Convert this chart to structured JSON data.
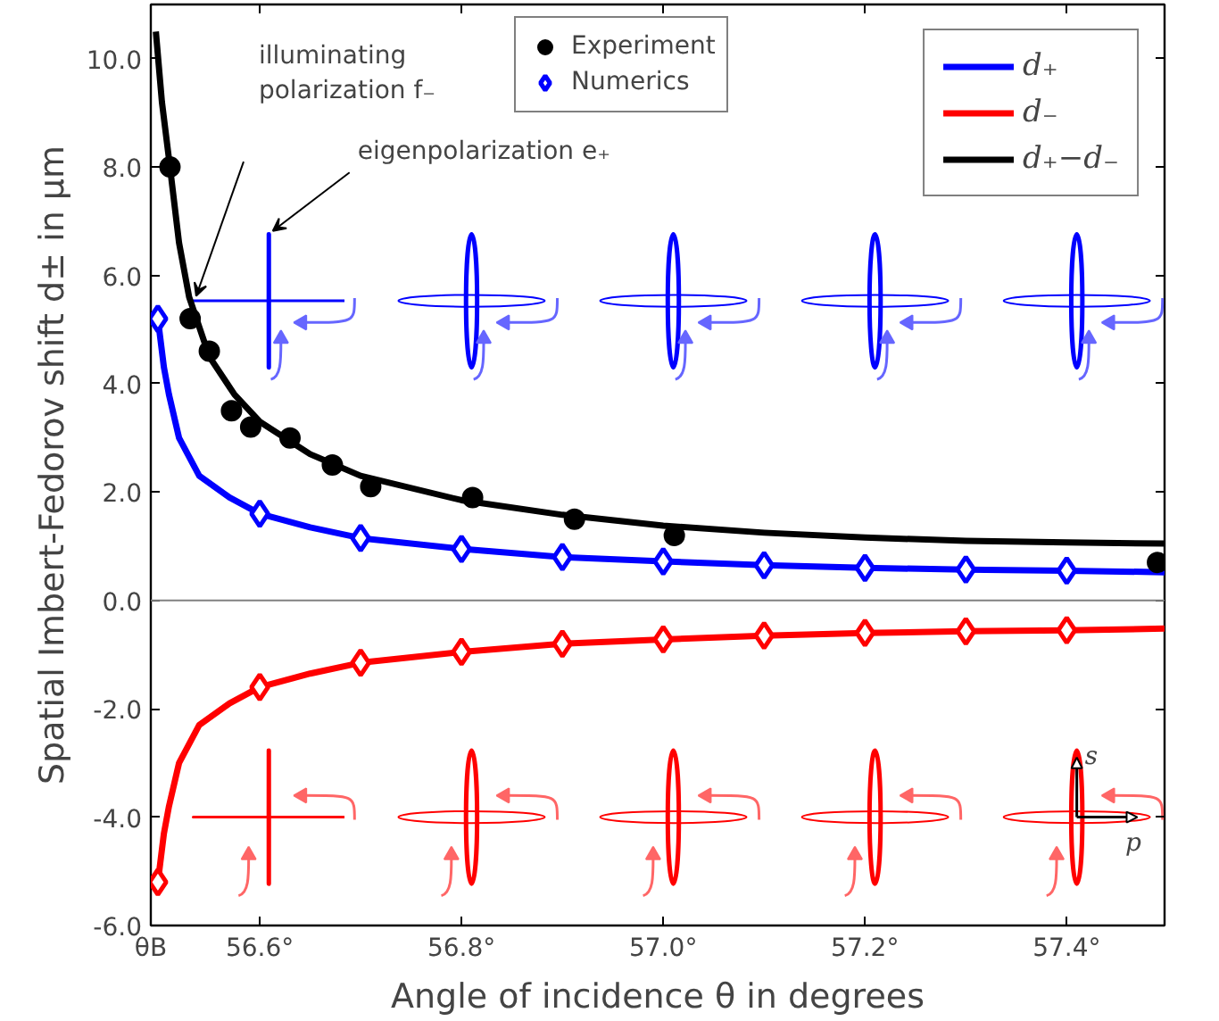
{
  "chart_data": {
    "type": "line",
    "xlabel": "Angle of incidence θ in degrees",
    "ylabel": "Spatial Imbert-Fedorov shift d± in μm",
    "xlim": [
      56.492,
      57.497
    ],
    "ylim": [
      -6.0,
      11.0
    ],
    "xticks": [
      {
        "value": 56.492,
        "label": "θB"
      },
      {
        "value": 56.6,
        "label": "56.6°"
      },
      {
        "value": 56.8,
        "label": "56.8°"
      },
      {
        "value": 57.0,
        "label": "57.0°"
      },
      {
        "value": 57.2,
        "label": "57.2°"
      },
      {
        "value": 57.4,
        "label": "57.4°"
      }
    ],
    "yticks": [
      {
        "value": -6,
        "label": "-6.0"
      },
      {
        "value": -4,
        "label": "-4.0"
      },
      {
        "value": -2,
        "label": "-2.0"
      },
      {
        "value": 0,
        "label": "0.0"
      },
      {
        "value": 2,
        "label": "2.0"
      },
      {
        "value": 4,
        "label": "4.0"
      },
      {
        "value": 6,
        "label": "6.0"
      },
      {
        "value": 8,
        "label": "8.0"
      },
      {
        "value": 10,
        "label": "10.0"
      }
    ],
    "grid": false,
    "legend": "top right",
    "series": [
      {
        "name": "d₊",
        "color": "#0000ff",
        "x": [
          56.499,
          56.505,
          56.51,
          56.52,
          56.54,
          56.57,
          56.6,
          56.65,
          56.7,
          56.8,
          56.9,
          57.0,
          57.1,
          57.2,
          57.3,
          57.4,
          57.497
        ],
        "values": [
          5.2,
          4.3,
          3.8,
          3.0,
          2.3,
          1.9,
          1.6,
          1.35,
          1.15,
          0.95,
          0.8,
          0.72,
          0.65,
          0.6,
          0.57,
          0.55,
          0.52
        ]
      },
      {
        "name": "d₋",
        "color": "#ff0000",
        "x": [
          56.499,
          56.505,
          56.51,
          56.52,
          56.54,
          56.57,
          56.6,
          56.65,
          56.7,
          56.8,
          56.9,
          57.0,
          57.1,
          57.2,
          57.3,
          57.4,
          57.497
        ],
        "values": [
          -5.2,
          -4.3,
          -3.8,
          -3.0,
          -2.3,
          -1.9,
          -1.6,
          -1.35,
          -1.15,
          -0.95,
          -0.8,
          -0.72,
          -0.65,
          -0.6,
          -0.57,
          -0.55,
          -0.52
        ]
      },
      {
        "name": "d₊−d₋",
        "color": "#000000",
        "x": [
          56.497,
          56.503,
          56.511,
          56.52,
          56.53,
          56.55,
          56.575,
          56.6,
          56.65,
          56.7,
          56.8,
          56.9,
          57.0,
          57.1,
          57.2,
          57.3,
          57.4,
          57.497
        ],
        "values": [
          10.5,
          9.2,
          8.0,
          6.6,
          5.6,
          4.5,
          3.8,
          3.3,
          2.7,
          2.3,
          1.85,
          1.58,
          1.38,
          1.25,
          1.16,
          1.1,
          1.07,
          1.05
        ]
      },
      {
        "name": "Experiment",
        "type": "scatter",
        "marker": "circle",
        "color": "#000000",
        "x": [
          56.511,
          56.531,
          56.55,
          56.572,
          56.591,
          56.63,
          56.672,
          56.71,
          56.811,
          56.912,
          57.011,
          57.49
        ],
        "values": [
          8.0,
          5.2,
          4.6,
          3.5,
          3.2,
          3.0,
          2.5,
          2.1,
          1.9,
          1.5,
          1.2,
          0.7
        ]
      },
      {
        "name": "Numerics",
        "type": "scatter",
        "marker": "diamond",
        "color": "#0000ff",
        "x": [
          56.499,
          56.6,
          56.7,
          56.8,
          56.9,
          57.0,
          57.1,
          57.2,
          57.3,
          57.4
        ],
        "values": [
          5.2,
          1.6,
          1.15,
          0.95,
          0.8,
          0.72,
          0.65,
          0.6,
          0.57,
          0.55
        ]
      },
      {
        "type": "scatter",
        "marker": "diamond",
        "color": "#ff0000",
        "x": [
          56.499,
          56.6,
          56.7,
          56.8,
          56.9,
          57.0,
          57.1,
          57.2,
          57.3,
          57.4
        ],
        "values": [
          -5.2,
          -1.6,
          -1.15,
          -0.95,
          -0.8,
          -0.72,
          -0.65,
          -0.6,
          -0.57,
          -0.55
        ]
      }
    ],
    "ref_lines": [
      {
        "axis": "y",
        "value": 0,
        "color": "#808080"
      }
    ],
    "annotations": [
      "illuminating\npolarization f₋",
      "eigenpolarization e₊",
      "s",
      "p"
    ]
  }
}
